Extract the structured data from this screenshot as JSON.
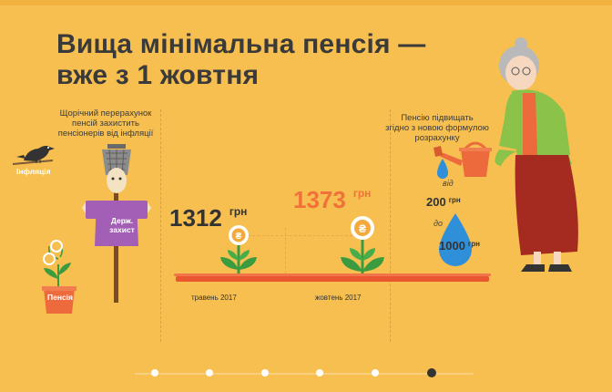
{
  "title": {
    "line1": "Вища мінімальна пенсія —",
    "line2": "вже з 1 жовтня"
  },
  "left_caption": {
    "line1": "Щорічний перерахунок",
    "line2": "пенсій захистить",
    "line3": "пенсіонерів від інфляції"
  },
  "labels": {
    "inflation": "Інфляція",
    "scarecrow_sign_line1": "Держ.",
    "scarecrow_sign_line2": "захист",
    "pension_pot": "Пенсія"
  },
  "values": {
    "may": {
      "amount": "1312",
      "unit": "грн",
      "date": "травень 2017"
    },
    "oct": {
      "amount": "1373",
      "unit": "грн",
      "date": "жовтень 2017"
    }
  },
  "right_caption": {
    "line1": "Пенсію підвищать",
    "line2": "згідно з новою формулою",
    "line3": "розрахунку"
  },
  "drops": {
    "from_label": "від",
    "from_amount": "200",
    "to_label": "до",
    "to_amount": "1000",
    "unit": "грн"
  },
  "pager": {
    "count": 6,
    "active_index": 5
  },
  "colors": {
    "background": "#f6bf4f",
    "accent_orange": "#f0723a",
    "bed_red": "#e9562f",
    "drop_blue": "#2f8fd8",
    "plant_green": "#3a9c3f"
  }
}
